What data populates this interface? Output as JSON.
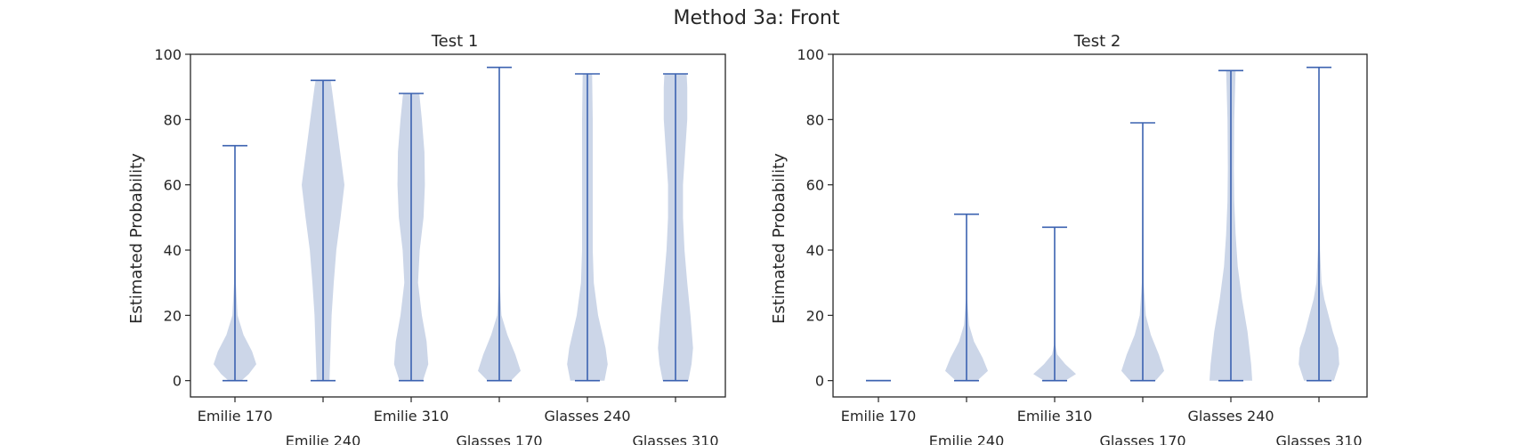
{
  "figure": {
    "title": "Method 3a: Front"
  },
  "colors": {
    "violin_fill": "#c9d4e7",
    "violin_line": "#3b62b0",
    "axes": "#262626"
  },
  "chart_data": [
    {
      "type": "violin",
      "title": "Test 1",
      "ylabel": "Estimated Probability",
      "xlabel": "",
      "ylim": [
        -5,
        100
      ],
      "yticks": [
        0,
        20,
        40,
        60,
        80,
        100
      ],
      "categories": [
        "Emilie 170",
        "Emilie 240",
        "Emilie 310",
        "Glasses 170",
        "Glasses 240",
        "Glasses 310"
      ],
      "violins": [
        {
          "min": 0,
          "max": 72,
          "density": [
            [
              0,
              0.3
            ],
            [
              2,
              0.65
            ],
            [
              5,
              1
            ],
            [
              9,
              0.8
            ],
            [
              14,
              0.4
            ],
            [
              20,
              0.12
            ],
            [
              30,
              0.04
            ],
            [
              50,
              0.02
            ],
            [
              72,
              0.01
            ]
          ]
        },
        {
          "min": 0,
          "max": 92,
          "density": [
            [
              0,
              0.3
            ],
            [
              10,
              0.35
            ],
            [
              20,
              0.4
            ],
            [
              30,
              0.5
            ],
            [
              40,
              0.62
            ],
            [
              50,
              0.82
            ],
            [
              60,
              1
            ],
            [
              70,
              0.8
            ],
            [
              80,
              0.6
            ],
            [
              90,
              0.4
            ],
            [
              92,
              0.35
            ]
          ]
        },
        {
          "min": 0,
          "max": 88,
          "density": [
            [
              0,
              0.55
            ],
            [
              5,
              0.8
            ],
            [
              12,
              0.72
            ],
            [
              20,
              0.5
            ],
            [
              30,
              0.32
            ],
            [
              40,
              0.4
            ],
            [
              50,
              0.58
            ],
            [
              60,
              0.64
            ],
            [
              70,
              0.62
            ],
            [
              80,
              0.5
            ],
            [
              88,
              0.38
            ]
          ]
        },
        {
          "min": 0,
          "max": 96,
          "density": [
            [
              0,
              0.55
            ],
            [
              3,
              1
            ],
            [
              8,
              0.75
            ],
            [
              14,
              0.38
            ],
            [
              20,
              0.1
            ],
            [
              30,
              0.02
            ],
            [
              60,
              0.02
            ],
            [
              96,
              0.01
            ]
          ]
        },
        {
          "min": 0,
          "max": 94,
          "density": [
            [
              0,
              0.8
            ],
            [
              5,
              0.95
            ],
            [
              10,
              0.85
            ],
            [
              20,
              0.5
            ],
            [
              30,
              0.3
            ],
            [
              40,
              0.25
            ],
            [
              60,
              0.25
            ],
            [
              80,
              0.25
            ],
            [
              94,
              0.22
            ]
          ]
        },
        {
          "min": 0,
          "max": 94,
          "density": [
            [
              0,
              0.6
            ],
            [
              5,
              0.75
            ],
            [
              10,
              0.82
            ],
            [
              20,
              0.7
            ],
            [
              30,
              0.55
            ],
            [
              40,
              0.42
            ],
            [
              50,
              0.35
            ],
            [
              60,
              0.35
            ],
            [
              70,
              0.45
            ],
            [
              80,
              0.55
            ],
            [
              90,
              0.55
            ],
            [
              94,
              0.52
            ]
          ]
        }
      ]
    },
    {
      "type": "violin",
      "title": "Test 2",
      "ylabel": "Estimated Probability",
      "xlabel": "",
      "ylim": [
        -5,
        100
      ],
      "yticks": [
        0,
        20,
        40,
        60,
        80,
        100
      ],
      "categories": [
        "Emilie 170",
        "Emilie 240",
        "Emilie 310",
        "Glasses 170",
        "Glasses 240",
        "Glasses 310"
      ],
      "violins": [
        {
          "min": 0,
          "max": 0,
          "density": []
        },
        {
          "min": 0,
          "max": 51,
          "density": [
            [
              0,
              0.5
            ],
            [
              3,
              1
            ],
            [
              7,
              0.75
            ],
            [
              12,
              0.35
            ],
            [
              17,
              0.12
            ],
            [
              25,
              0.03
            ],
            [
              51,
              0.01
            ]
          ]
        },
        {
          "min": 0,
          "max": 47,
          "density": [
            [
              0,
              0.5
            ],
            [
              2,
              1
            ],
            [
              5,
              0.5
            ],
            [
              8,
              0.12
            ],
            [
              11,
              0.03
            ],
            [
              20,
              0.01
            ],
            [
              47,
              0.01
            ]
          ]
        },
        {
          "min": 0,
          "max": 79,
          "density": [
            [
              0,
              0.6
            ],
            [
              3,
              1
            ],
            [
              8,
              0.75
            ],
            [
              14,
              0.38
            ],
            [
              20,
              0.14
            ],
            [
              30,
              0.04
            ],
            [
              79,
              0.01
            ]
          ]
        },
        {
          "min": 0,
          "max": 95,
          "density": [
            [
              0,
              1
            ],
            [
              5,
              0.95
            ],
            [
              15,
              0.78
            ],
            [
              25,
              0.52
            ],
            [
              35,
              0.32
            ],
            [
              45,
              0.22
            ],
            [
              55,
              0.16
            ],
            [
              65,
              0.14
            ],
            [
              80,
              0.16
            ],
            [
              95,
              0.22
            ]
          ]
        },
        {
          "min": 0,
          "max": 96,
          "density": [
            [
              0,
              0.7
            ],
            [
              5,
              0.95
            ],
            [
              10,
              0.9
            ],
            [
              15,
              0.65
            ],
            [
              20,
              0.45
            ],
            [
              25,
              0.25
            ],
            [
              30,
              0.12
            ],
            [
              40,
              0.05
            ],
            [
              60,
              0.02
            ],
            [
              96,
              0.01
            ]
          ]
        }
      ]
    }
  ]
}
